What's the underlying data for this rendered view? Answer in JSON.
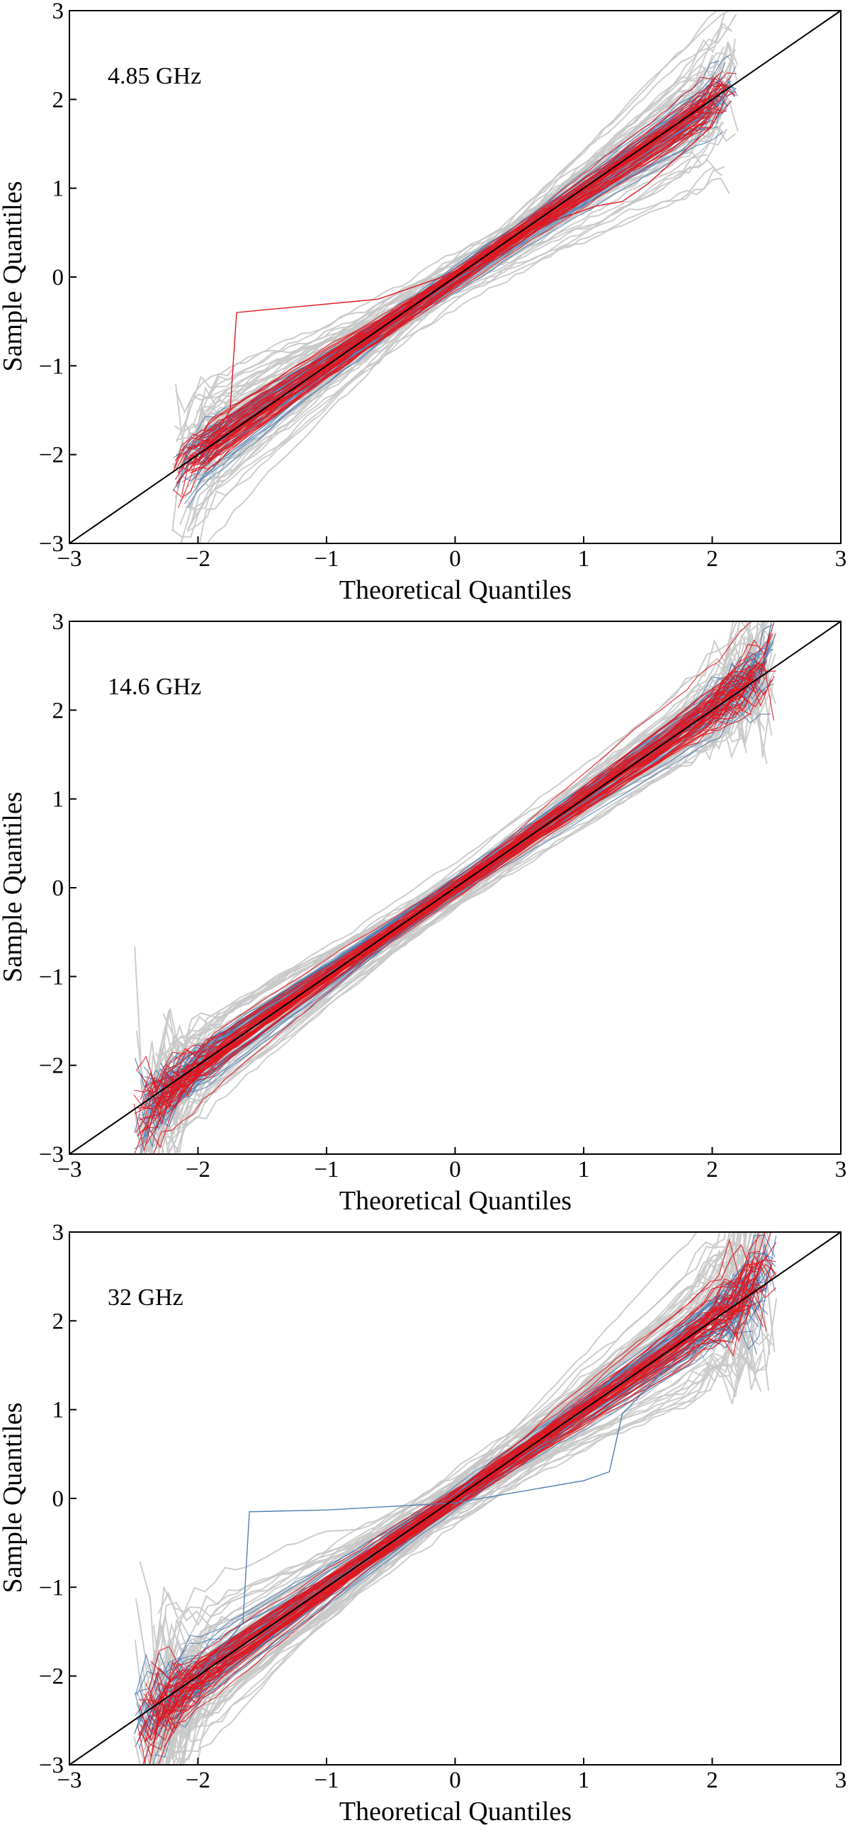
{
  "figure": {
    "description_free": true
  },
  "chart_data": [
    {
      "type": "line",
      "subtype": "qq-plot",
      "panel_label": "4.85 GHz",
      "xlabel": "Theoretical Quantiles",
      "ylabel": "Sample Quantiles",
      "xlim": [
        -3,
        3
      ],
      "ylim": [
        -3,
        3
      ],
      "xticks": [
        -3,
        -2,
        -1,
        0,
        1,
        2,
        3
      ],
      "yticks": [
        -3,
        -2,
        -1,
        0,
        1,
        2,
        3
      ],
      "xtick_labels": [
        "−3",
        "−2",
        "−1",
        "0",
        "1",
        "2",
        "3"
      ],
      "ytick_labels": [
        "−3",
        "−2",
        "−1",
        "0",
        "1",
        "2",
        "3"
      ],
      "grid": false,
      "reference_line": {
        "x": [
          -3,
          3
        ],
        "y": [
          -3,
          3
        ],
        "color": "#000000"
      },
      "theoretical_range": [
        -2.2,
        2.2
      ],
      "series": [
        {
          "name": "grey",
          "color": "#c8c8c8",
          "count": 70,
          "spread": 0.28
        },
        {
          "name": "blue",
          "color": "#4f7fb3",
          "count": 45,
          "spread": 0.12
        },
        {
          "name": "red",
          "color": "#e0161e",
          "count": 45,
          "spread": 0.12
        }
      ],
      "outliers": [
        {
          "color": "#e0161e",
          "x": [
            -2.0,
            -1.75,
            -1.7,
            -0.6,
            0.0,
            0.6,
            1.1,
            1.3,
            1.5,
            2.0,
            2.1
          ],
          "y": [
            -2.1,
            -1.5,
            -0.4,
            -0.25,
            0.05,
            0.55,
            0.8,
            0.85,
            1.05,
            1.7,
            2.0
          ]
        }
      ]
    },
    {
      "type": "line",
      "subtype": "qq-plot",
      "panel_label": "14.6 GHz",
      "xlabel": "Theoretical Quantiles",
      "ylabel": "Sample Quantiles",
      "xlim": [
        -3,
        3
      ],
      "ylim": [
        -3,
        3
      ],
      "xticks": [
        -3,
        -2,
        -1,
        0,
        1,
        2,
        3
      ],
      "yticks": [
        -3,
        -2,
        -1,
        0,
        1,
        2,
        3
      ],
      "xtick_labels": [
        "−3",
        "−2",
        "−1",
        "0",
        "1",
        "2",
        "3"
      ],
      "ytick_labels": [
        "−3",
        "−2",
        "−1",
        "0",
        "1",
        "2",
        "3"
      ],
      "grid": false,
      "reference_line": {
        "x": [
          -3,
          3
        ],
        "y": [
          -3,
          3
        ],
        "color": "#000000"
      },
      "theoretical_range": [
        -2.5,
        2.5
      ],
      "series": [
        {
          "name": "grey",
          "color": "#c8c8c8",
          "count": 70,
          "spread": 0.22
        },
        {
          "name": "blue",
          "color": "#4f7fb3",
          "count": 45,
          "spread": 0.1
        },
        {
          "name": "red",
          "color": "#e0161e",
          "count": 45,
          "spread": 0.1
        }
      ],
      "outliers": []
    },
    {
      "type": "line",
      "subtype": "qq-plot",
      "panel_label": "32 GHz",
      "xlabel": "Theoretical Quantiles",
      "ylabel": "Sample Quantiles",
      "xlim": [
        -3,
        3
      ],
      "ylim": [
        -3,
        3
      ],
      "xticks": [
        -3,
        -2,
        -1,
        0,
        1,
        2,
        3
      ],
      "yticks": [
        -3,
        -2,
        -1,
        0,
        1,
        2,
        3
      ],
      "xtick_labels": [
        "−3",
        "−2",
        "−1",
        "0",
        "1",
        "2",
        "3"
      ],
      "ytick_labels": [
        "−3",
        "−2",
        "−1",
        "0",
        "1",
        "2",
        "3"
      ],
      "grid": false,
      "reference_line": {
        "x": [
          -3,
          3
        ],
        "y": [
          -3,
          3
        ],
        "color": "#000000"
      },
      "theoretical_range": [
        -2.5,
        2.5
      ],
      "series": [
        {
          "name": "grey",
          "color": "#c8c8c8",
          "count": 70,
          "spread": 0.28
        },
        {
          "name": "blue",
          "color": "#4f7fb3",
          "count": 45,
          "spread": 0.12
        },
        {
          "name": "red",
          "color": "#e0161e",
          "count": 45,
          "spread": 0.13
        }
      ],
      "outliers": [
        {
          "color": "#4f7fb3",
          "x": [
            -2.0,
            -1.65,
            -1.6,
            -1.0,
            0.0,
            1.0,
            1.2,
            1.3,
            1.8,
            2.2
          ],
          "y": [
            -2.0,
            -1.4,
            -0.15,
            -0.13,
            -0.05,
            0.2,
            0.3,
            0.95,
            1.7,
            2.0
          ]
        }
      ]
    }
  ]
}
